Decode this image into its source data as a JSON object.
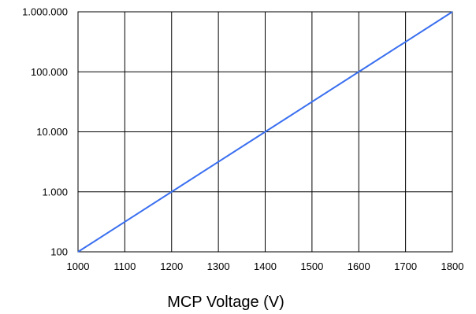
{
  "chart_data": {
    "type": "line",
    "title": "",
    "xlabel": "MCP Voltage (V)",
    "ylabel": "",
    "x_scale": "linear",
    "y_scale": "log",
    "xlim": [
      1000,
      1800
    ],
    "ylim": [
      100,
      1000000
    ],
    "x_ticks": [
      1000,
      1100,
      1200,
      1300,
      1400,
      1500,
      1600,
      1700,
      1800
    ],
    "x_tick_labels": [
      "1000",
      "1100",
      "1200",
      "1300",
      "1400",
      "1500",
      "1600",
      "1700",
      "1800"
    ],
    "y_ticks": [
      100,
      1000,
      10000,
      100000,
      1000000
    ],
    "y_tick_labels": [
      "100",
      "1.000",
      "10.000",
      "100.000",
      "1.000.000"
    ],
    "grid": true,
    "legend": false,
    "series": [
      {
        "color": "#3a6ff0",
        "x": [
          1000,
          1200,
          1400,
          1600,
          1800
        ],
        "y": [
          100,
          1000,
          10000,
          100000,
          1000000
        ]
      }
    ]
  }
}
